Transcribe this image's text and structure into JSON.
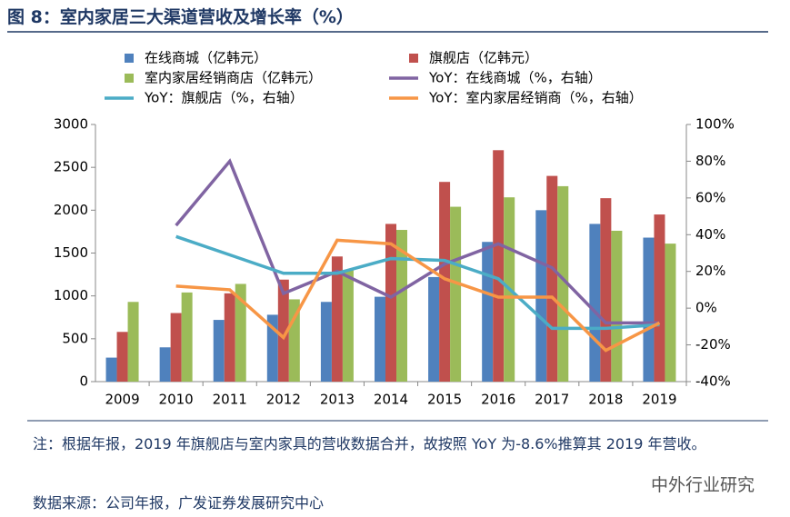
{
  "title": "图 8：室内家居三大渠道营收及增长率（%）",
  "chart_data": {
    "type": "combo",
    "categories": [
      "2009",
      "2010",
      "2011",
      "2012",
      "2013",
      "2014",
      "2015",
      "2016",
      "2017",
      "2018",
      "2019"
    ],
    "ylim": [
      0,
      3000
    ],
    "yticks": [
      0,
      500,
      1000,
      1500,
      2000,
      2500,
      3000
    ],
    "y2lim": [
      -40,
      100
    ],
    "y2ticks": [
      {
        "value": -40,
        "label": "-40%"
      },
      {
        "value": -20,
        "label": "-20%"
      },
      {
        "value": 0,
        "label": "0%"
      },
      {
        "value": 20,
        "label": "20%"
      },
      {
        "value": 40,
        "label": "40%"
      },
      {
        "value": 60,
        "label": "60%"
      },
      {
        "value": 80,
        "label": "80%"
      },
      {
        "value": 100,
        "label": "100%"
      }
    ],
    "series": [
      {
        "name": "在线商城（亿韩元）",
        "type": "bar",
        "color": "#4f81bd",
        "values": [
          280,
          400,
          720,
          780,
          930,
          990,
          1220,
          1630,
          2000,
          1840,
          1680
        ]
      },
      {
        "name": "旗舰店（亿韩元）",
        "type": "bar",
        "color": "#c0504d",
        "values": [
          580,
          800,
          1030,
          1190,
          1460,
          1840,
          2330,
          2700,
          2400,
          2140,
          1950
        ]
      },
      {
        "name": "室内家居经销商店（亿韩元）",
        "type": "bar",
        "color": "#9bbb59",
        "values": [
          930,
          1040,
          1140,
          960,
          1300,
          1770,
          2040,
          2150,
          2280,
          1760,
          1610
        ]
      },
      {
        "name": "YoY：在线商城（%，右轴）",
        "type": "line",
        "axis": "y2",
        "color": "#8064a2",
        "values": [
          null,
          45,
          80,
          8,
          20,
          6,
          24,
          35,
          22,
          -8,
          -8
        ]
      },
      {
        "name": "YoY：旗舰店（%，右轴）",
        "type": "line",
        "axis": "y2",
        "color": "#4bacc6",
        "values": [
          null,
          39,
          29,
          19,
          19,
          27,
          26,
          16,
          -11,
          -11,
          -9
        ]
      },
      {
        "name": "YoY：室内家居经销商（%，右轴）",
        "type": "line",
        "axis": "y2",
        "color": "#f79646",
        "values": [
          null,
          12,
          10,
          -16,
          37,
          35,
          16,
          6,
          6,
          -23,
          -8
        ]
      }
    ]
  },
  "note": "注：根据年报，2019 年旗舰店与室内家具的营收数据合并，故按照 YoY 为-8.6%推算其 2019 年营收。",
  "source": "数据来源：公司年报，广发证券发展研究中心",
  "watermark": "中外行业研究"
}
